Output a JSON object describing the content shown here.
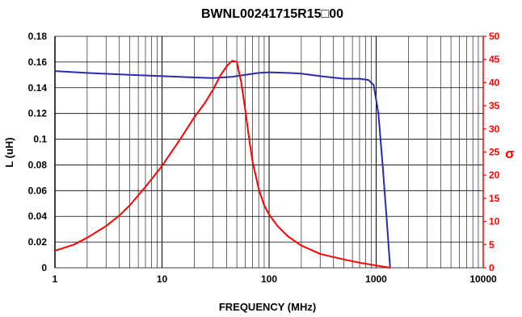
{
  "chart_data": {
    "type": "line",
    "title": "BWNL00241715R15□00",
    "xlabel": "FREQUENCY (MHz)",
    "ylabel_left": "L (uH)",
    "ylabel_right": "σ",
    "x_scale": "log",
    "xlim": [
      1,
      10000
    ],
    "ylim_left": [
      0,
      0.18
    ],
    "ylim_right": [
      0,
      50
    ],
    "x_ticks": [
      "1",
      "10",
      "100",
      "1000",
      "10000"
    ],
    "y_left_ticks": [
      "0",
      "0.02",
      "0.04",
      "0.06",
      "0.08",
      "0.1",
      "0.12",
      "0.14",
      "0.16",
      "0.18"
    ],
    "y_right_ticks": [
      "0",
      "5",
      "10",
      "15",
      "20",
      "25",
      "30",
      "35",
      "40",
      "45",
      "50"
    ],
    "grid": true,
    "colors": {
      "axis_left": "#000000",
      "axis_right": "#ff0000",
      "L": "#2b2bb0",
      "Q": "#ff0000"
    },
    "series": [
      {
        "axis": "left",
        "x": [
          1,
          2,
          5,
          10,
          20,
          30,
          45,
          60,
          80,
          100,
          150,
          200,
          300,
          500,
          700,
          850,
          950,
          1050,
          1150,
          1250,
          1350
        ],
        "y": [
          0.153,
          0.1515,
          0.15,
          0.149,
          0.148,
          0.1475,
          0.1485,
          0.15,
          0.1515,
          0.152,
          0.1515,
          0.151,
          0.149,
          0.147,
          0.147,
          0.146,
          0.142,
          0.12,
          0.08,
          0.04,
          0.0
        ]
      },
      {
        "axis": "right",
        "x": [
          1,
          1.5,
          2,
          3,
          4,
          5,
          7,
          10,
          15,
          20,
          25,
          30,
          35,
          40,
          45,
          50,
          55,
          60,
          65,
          70,
          80,
          90,
          100,
          120,
          150,
          200,
          300,
          500,
          700,
          1000,
          1350
        ],
        "y": [
          3.7,
          5.0,
          6.5,
          9.0,
          11.3,
          13.5,
          17.5,
          22.0,
          28.0,
          32.5,
          35.5,
          38.5,
          41.5,
          43.5,
          44.7,
          44.5,
          40.0,
          34.0,
          28.0,
          23.0,
          17.0,
          13.5,
          11.5,
          9.0,
          6.8,
          4.8,
          3.0,
          1.8,
          1.1,
          0.5,
          0.0
        ]
      }
    ]
  }
}
